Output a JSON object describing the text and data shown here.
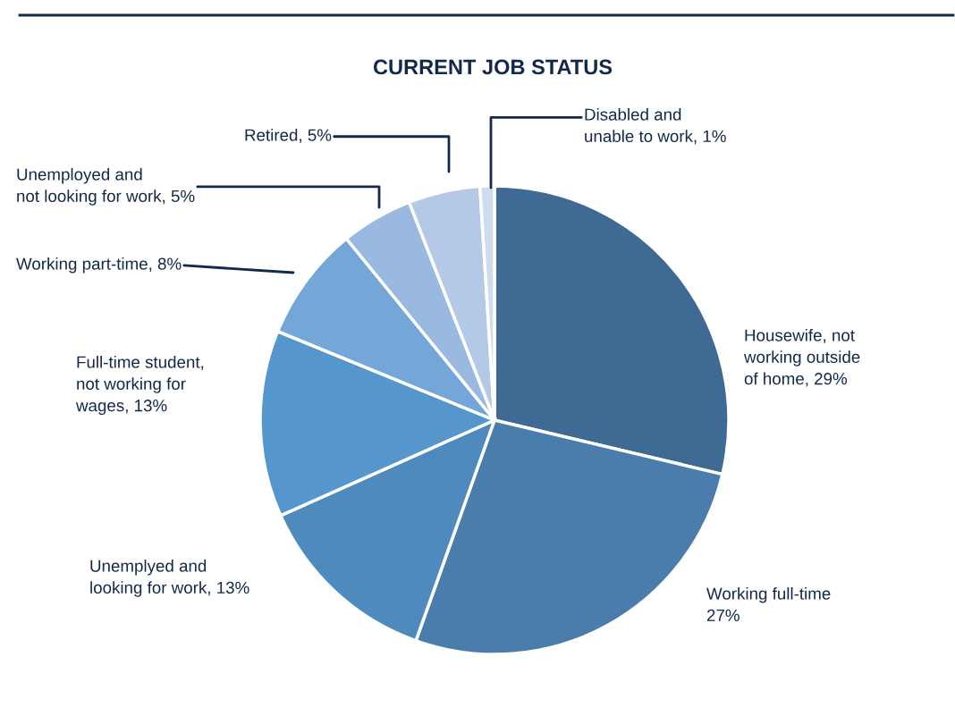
{
  "chart_data": {
    "type": "pie",
    "title": "CURRENT JOB STATUS",
    "categories": [
      "Housewife, not\nworking outside\nof home",
      "Working full-time",
      "Unemplyed and\nlooking for work",
      "Full-time student,\nnot working for\nwages",
      "Working part-time",
      "Unemployed and\nnot looking for work",
      "Retired",
      "Disabled and\nunable to work"
    ],
    "values": [
      29,
      27,
      13,
      13,
      8,
      5,
      5,
      1
    ],
    "value_labels": [
      "29%",
      "27%",
      "13%",
      "13%",
      "8%",
      "5%",
      "5%",
      "1%"
    ],
    "colors": [
      "#3f6a93",
      "#4a7dab",
      "#4f8abe",
      "#5597cc",
      "#74a6d8",
      "#9ab9e0",
      "#b3c9e6",
      "#cfdcee"
    ]
  }
}
